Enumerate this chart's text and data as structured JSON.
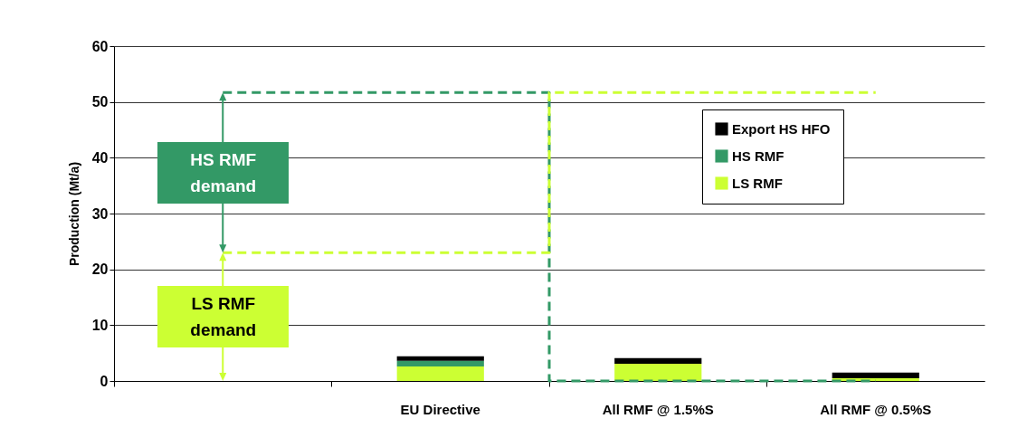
{
  "chart_data": {
    "type": "bar",
    "stacked": true,
    "ylabel": "Production (Mt/a)",
    "categories": [
      null,
      "EU Directive",
      "All RMF @ 1.5%S",
      "All RMF @ 0.5%S"
    ],
    "series": [
      {
        "name": "LS RMF",
        "color": "#ccff33",
        "values": [
          null,
          2.6,
          3.1,
          0.5
        ]
      },
      {
        "name": "HS RMF",
        "color": "#339966",
        "values": [
          null,
          1.0,
          0,
          0
        ]
      },
      {
        "name": "Export HS HFO",
        "color": "#000000",
        "values": [
          null,
          0.8,
          1.0,
          1.0
        ]
      },
      {
        "type": "step",
        "color": "#339966",
        "values": [
          51.7,
          51.7,
          0,
          0
        ]
      },
      {
        "type": "step",
        "color": "#ccff33",
        "values": [
          23,
          23,
          51.7,
          51.7
        ]
      }
    ],
    "annotations": [
      "HS RMF demand",
      "LS RMF demand"
    ],
    "line_style": "dashed",
    "ylim": [
      0,
      60
    ],
    "yticks": [
      0,
      10,
      20,
      30,
      40,
      50,
      60
    ],
    "grid": "y",
    "legend": "top right"
  }
}
